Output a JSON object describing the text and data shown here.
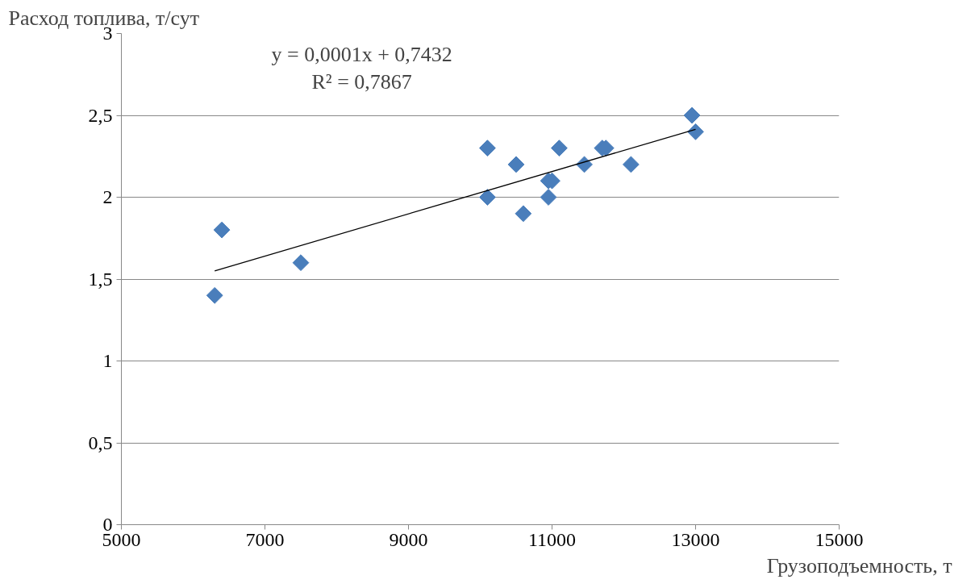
{
  "chart_data": {
    "type": "scatter",
    "xlabel": "Грузоподъемность, т",
    "ylabel": "Расход топлива, т/сут",
    "annotations": [
      "y = 0,0001x + 0,7432",
      "R² = 0,7867"
    ],
    "xlim": [
      5000,
      15000
    ],
    "xticks": [
      5000,
      7000,
      9000,
      11000,
      13000,
      15000
    ],
    "ylim": [
      0,
      3
    ],
    "yticks": [
      0,
      {
        "value": 0.5,
        "label": "0,5"
      },
      1,
      {
        "value": 1.5,
        "label": "1,5"
      },
      2,
      {
        "value": 2.5,
        "label": "2,5"
      },
      3
    ],
    "grid": "y",
    "marker": "diamond",
    "series": [
      {
        "color": "#4a7ebb",
        "x": [
          6300,
          6400,
          7500,
          10100,
          10100,
          10500,
          10600,
          10950,
          11000,
          10950,
          11100,
          11450,
          11700,
          11750,
          12100,
          12950,
          13000
        ],
        "values": [
          1.4,
          1.8,
          1.6,
          2.3,
          2.0,
          2.2,
          1.9,
          2.1,
          2.1,
          2.0,
          2.3,
          2.2,
          2.3,
          2.3,
          2.2,
          2.5,
          2.4
        ]
      },
      {
        "type": "line",
        "marker": "none",
        "color": "#000000",
        "x": [
          6300,
          13000
        ],
        "values": [
          1.55,
          2.415
        ]
      }
    ]
  }
}
